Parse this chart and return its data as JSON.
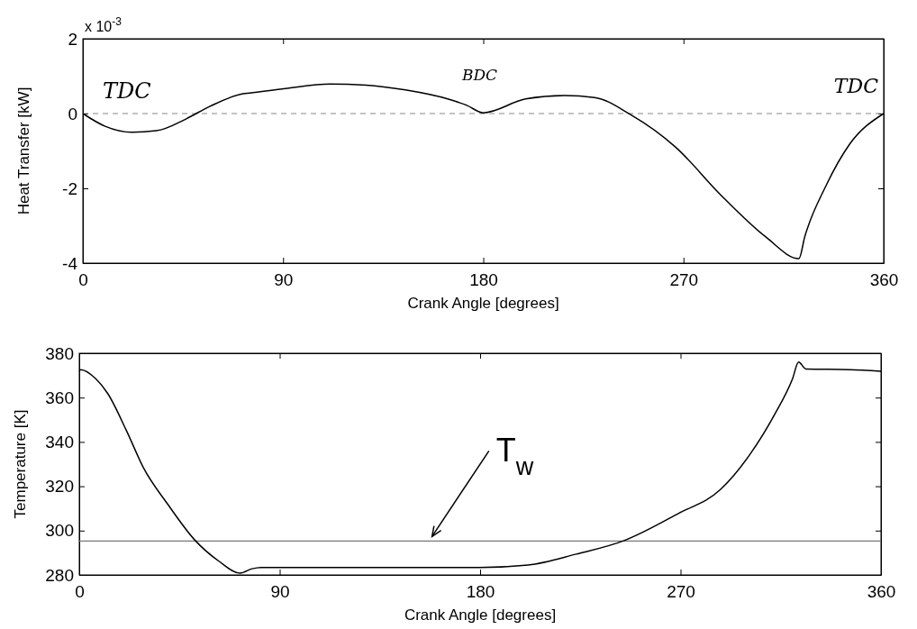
{
  "chart_data": [
    {
      "type": "line",
      "xlabel": "Crank Angle [degrees]",
      "ylabel": "Heat Transfer [kW]",
      "xlim": [
        0,
        360
      ],
      "ylim": [
        -4,
        2
      ],
      "xticks": [
        0,
        90,
        180,
        270,
        360
      ],
      "yticks": [
        -4,
        -2,
        0,
        2
      ],
      "grid": false,
      "x": [
        0,
        10,
        22,
        33,
        46.5,
        57,
        72,
        75,
        91,
        111,
        127.4,
        145,
        164,
        172.6,
        180,
        199,
        216.5,
        230,
        246,
        266.5,
        286.8,
        307,
        321.9,
        324.5,
        334,
        344.7,
        360
      ],
      "series": [
        {
          "color": "#000000",
          "values": [
            0,
            -0.34,
            -0.5,
            -0.46,
            -0.14,
            0.19,
            0.53,
            0.55,
            0.67,
            0.79,
            0.76,
            0.63,
            0.39,
            0.22,
            0.02,
            0.39,
            0.48,
            0.43,
            -0.02,
            -0.9,
            -2.18,
            -3.3,
            -3.88,
            -3.3,
            -1.94,
            -0.82,
            0
          ]
        }
      ],
      "ref_lines": [
        {
          "axis": "y",
          "value": 0,
          "color": "#888888",
          "line_style": "dashed"
        }
      ],
      "annotations": [
        "x 10$^{-3}$",
        "TDC",
        "BDC",
        "TDC"
      ]
    },
    {
      "type": "line",
      "xlabel": "Crank Angle [degrees]",
      "ylabel": "Temperature [K]",
      "xlim": [
        0,
        360
      ],
      "ylim": [
        280,
        380
      ],
      "xticks": [
        0,
        90,
        180,
        270,
        360
      ],
      "yticks": [
        280,
        300,
        320,
        340,
        360,
        380
      ],
      "grid": false,
      "x": [
        0,
        0.7,
        7.4,
        12.8,
        21,
        29,
        39.8,
        52,
        62.7,
        72.2,
        77.6,
        81.6,
        180,
        201.6,
        223.2,
        244.7,
        269,
        288,
        301.4,
        312.2,
        320.3,
        323,
        326.3,
        345.8,
        360
      ],
      "series": [
        {
          "color": "#000000",
          "values": [
            372,
            372.6,
            368.5,
            361.8,
            345.5,
            328,
            311.8,
            295.6,
            286.2,
            280.8,
            282.8,
            283.4,
            283.4,
            284.5,
            289.4,
            295.5,
            307.7,
            318.6,
            334.7,
            352.3,
            368.5,
            376,
            372.9,
            372.6,
            371.9
          ]
        }
      ],
      "ref_lines": [
        {
          "axis": "y",
          "value": 295.3,
          "label": "T$_{w}$",
          "color": "#777777",
          "line_style": "solid"
        }
      ]
    }
  ]
}
